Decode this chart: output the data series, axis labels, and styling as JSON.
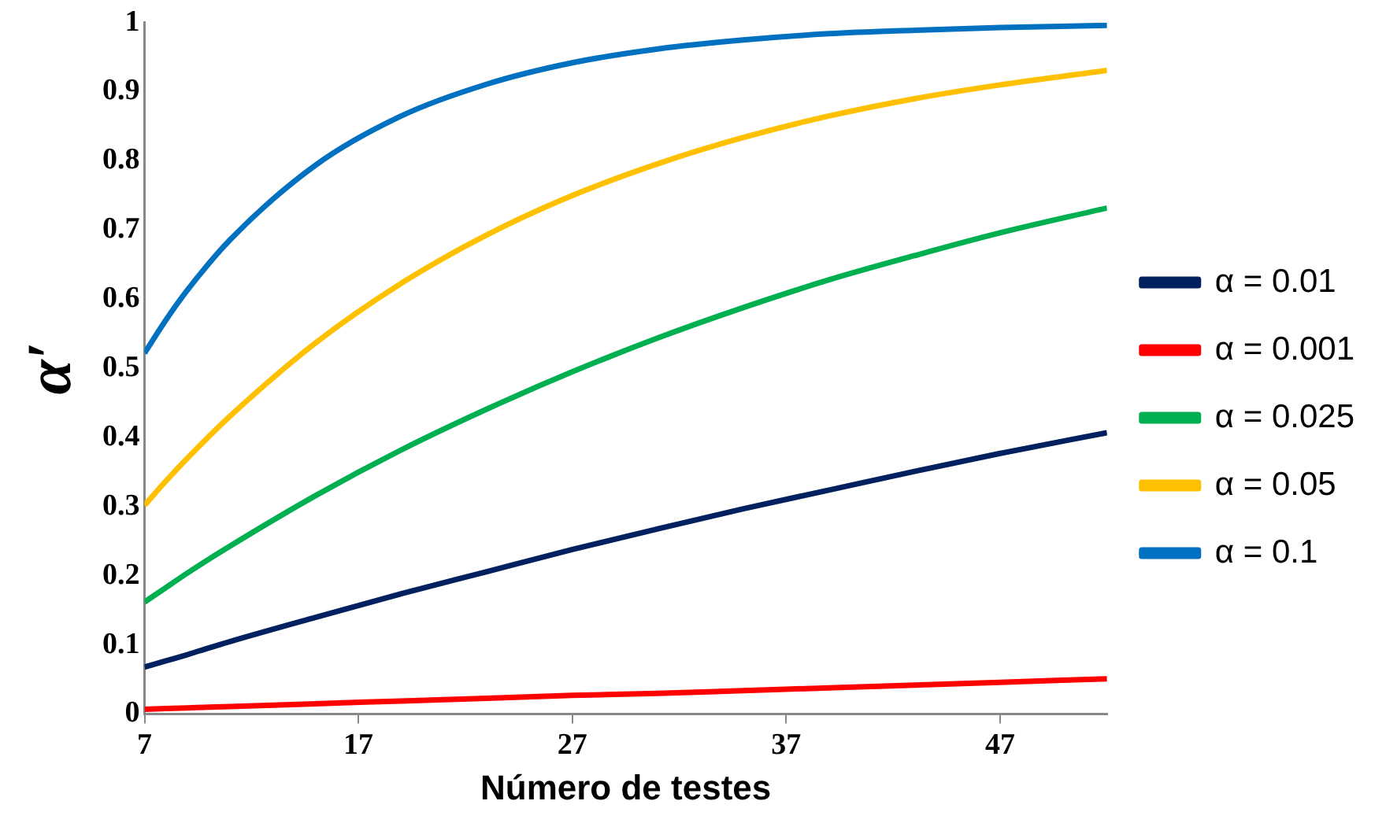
{
  "chart_data": {
    "type": "line",
    "xlabel": "Número de testes",
    "ylabel": "α′",
    "x": [
      7,
      8,
      9,
      11,
      15,
      19,
      23,
      27,
      31,
      35,
      39,
      43,
      47,
      52
    ],
    "xlim": [
      7,
      52
    ],
    "xticks": [
      7,
      17,
      27,
      37,
      47
    ],
    "ylim": [
      0,
      1
    ],
    "yticks": [
      0,
      0.1,
      0.2,
      0.3,
      0.4,
      0.5,
      0.6,
      0.7,
      0.8,
      0.9,
      1
    ],
    "grid": false,
    "legend": "right",
    "marker": "none",
    "line_style": "solid",
    "series": [
      {
        "name": "α = 0.01",
        "color": "#002060",
        "values": [
          0.068,
          0.077,
          0.086,
          0.105,
          0.14,
          0.174,
          0.206,
          0.238,
          0.268,
          0.297,
          0.324,
          0.351,
          0.377,
          0.407
        ]
      },
      {
        "name": "α = 0.001",
        "color": "#ff0000",
        "values": [
          0.007,
          0.008,
          0.009,
          0.011,
          0.015,
          0.019,
          0.023,
          0.027,
          0.03,
          0.034,
          0.038,
          0.042,
          0.046,
          0.051
        ]
      },
      {
        "name": "α = 0.025",
        "color": "#00b050",
        "values": [
          0.162,
          0.183,
          0.204,
          0.243,
          0.316,
          0.382,
          0.441,
          0.495,
          0.544,
          0.588,
          0.628,
          0.663,
          0.696,
          0.732
        ]
      },
      {
        "name": "α = 0.05",
        "color": "#ffc000",
        "values": [
          0.302,
          0.337,
          0.37,
          0.431,
          0.537,
          0.623,
          0.693,
          0.75,
          0.796,
          0.834,
          0.865,
          0.89,
          0.91,
          0.931
        ]
      },
      {
        "name": "α = 0.1",
        "color": "#0070c0",
        "values": [
          0.522,
          0.57,
          0.613,
          0.686,
          0.794,
          0.865,
          0.911,
          0.942,
          0.962,
          0.975,
          0.984,
          0.989,
          0.993,
          0.996
        ]
      }
    ]
  }
}
